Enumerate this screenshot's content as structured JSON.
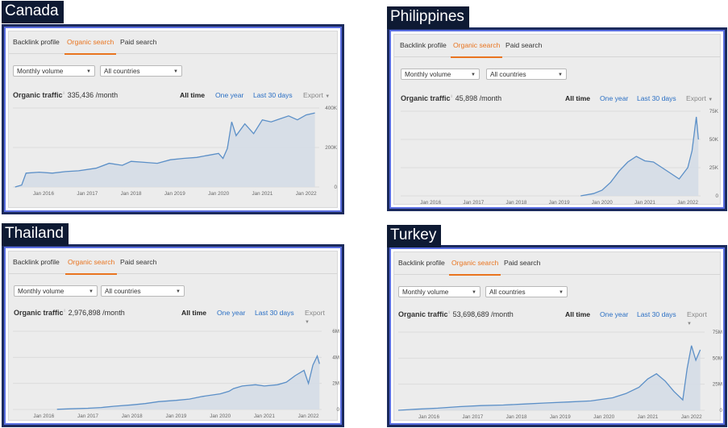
{
  "colors": {
    "accent": "#e9741f",
    "link": "#2a6fc4",
    "line": "#5b8fc7",
    "fill": "#d3dce6",
    "frame": "#1b2a5c",
    "label_bg": "#0e1a33"
  },
  "panels": [
    {
      "country": "Canada",
      "tabs": [
        "Backlink profile",
        "Organic search",
        "Paid search"
      ],
      "active_tab": "Organic search",
      "volume_select": "Monthly volume",
      "country_select": "All countries",
      "metric_label": "Organic traffic",
      "metric_value": "335,436 /month",
      "ranges": [
        "All time",
        "One year",
        "Last 30 days",
        "Export"
      ]
    },
    {
      "country": "Philippines",
      "tabs": [
        "Backlink profile",
        "Organic search",
        "Paid search"
      ],
      "active_tab": "Organic search",
      "volume_select": "Monthly volume",
      "country_select": "All countries",
      "metric_label": "Organic traffic",
      "metric_value": "45,898 /month",
      "ranges": [
        "All time",
        "One year",
        "Last 30 days",
        "Export"
      ]
    },
    {
      "country": "Thailand",
      "tabs": [
        "Backlink profile",
        "Organic search",
        "Paid search"
      ],
      "active_tab": "Organic search",
      "volume_select": "Monthly volume",
      "country_select": "All countries",
      "metric_label": "Organic traffic",
      "metric_value": "2,976,898 /month",
      "ranges": [
        "All time",
        "One year",
        "Last 30 days",
        "Export"
      ]
    },
    {
      "country": "Turkey",
      "tabs": [
        "Backlink profile",
        "Organic search",
        "Paid search"
      ],
      "active_tab": "Organic search",
      "volume_select": "Monthly volume",
      "country_select": "All countries",
      "metric_label": "Organic traffic",
      "metric_value": "53,698,689 /month",
      "ranges": [
        "All time",
        "One year",
        "Last 30 days",
        "Export"
      ]
    }
  ],
  "chart_data": [
    {
      "type": "area",
      "x_ticks": [
        "Jan 2016",
        "Jan 2017",
        "Jan 2018",
        "Jan 2019",
        "Jan 2020",
        "Jan 2021",
        "Jan 2022"
      ],
      "y_ticks": [
        "400K",
        "200K",
        "0"
      ],
      "ylim": [
        0,
        400000
      ],
      "x": [
        2015.35,
        2015.5,
        2015.6,
        2015.9,
        2016.2,
        2016.5,
        2016.8,
        2017.2,
        2017.5,
        2017.8,
        2018.0,
        2018.3,
        2018.6,
        2018.9,
        2019.2,
        2019.5,
        2019.8,
        2020.0,
        2020.1,
        2020.2,
        2020.3,
        2020.4,
        2020.6,
        2020.8,
        2021.0,
        2021.2,
        2021.4,
        2021.6,
        2021.8,
        2022.0,
        2022.2
      ],
      "y": [
        0,
        10000,
        70000,
        75000,
        70000,
        78000,
        82000,
        95000,
        120000,
        110000,
        130000,
        125000,
        120000,
        138000,
        145000,
        150000,
        162000,
        170000,
        145000,
        195000,
        330000,
        260000,
        320000,
        270000,
        340000,
        330000,
        345000,
        360000,
        340000,
        365000,
        375000
      ]
    },
    {
      "type": "area",
      "x_ticks": [
        "Jan 2016",
        "Jan 2017",
        "Jan 2018",
        "Jan 2019",
        "Jan 2020",
        "Jan 2021",
        "Jan 2022"
      ],
      "y_ticks": [
        "75K",
        "50K",
        "25K",
        "0"
      ],
      "ylim": [
        0,
        75000
      ],
      "x": [
        2019.5,
        2019.8,
        2020.0,
        2020.2,
        2020.4,
        2020.6,
        2020.8,
        2021.0,
        2021.2,
        2021.4,
        2021.6,
        2021.8,
        2022.0,
        2022.1,
        2022.2,
        2022.25
      ],
      "y": [
        0,
        2000,
        5000,
        12000,
        22000,
        30000,
        35000,
        31000,
        30000,
        25000,
        20000,
        15000,
        25000,
        40000,
        70000,
        50000
      ]
    },
    {
      "type": "area",
      "x_ticks": [
        "Jan 2016",
        "Jan 2017",
        "Jan 2018",
        "Jan 2019",
        "Jan 2020",
        "Jan 2021",
        "Jan 2022"
      ],
      "y_ticks": [
        "6M",
        "4M",
        "2M",
        "0"
      ],
      "ylim": [
        0,
        6000000
      ],
      "x": [
        2016.3,
        2016.6,
        2017.0,
        2017.3,
        2017.6,
        2018.0,
        2018.3,
        2018.6,
        2019.0,
        2019.3,
        2019.6,
        2020.0,
        2020.2,
        2020.3,
        2020.5,
        2020.8,
        2021.0,
        2021.3,
        2021.5,
        2021.7,
        2021.9,
        2022.0,
        2022.1,
        2022.2,
        2022.25
      ],
      "y": [
        10000,
        50000,
        90000,
        150000,
        250000,
        350000,
        450000,
        600000,
        700000,
        800000,
        1000000,
        1200000,
        1400000,
        1600000,
        1800000,
        1900000,
        1800000,
        1900000,
        2100000,
        2600000,
        3000000,
        2000000,
        3400000,
        4100000,
        3500000
      ]
    },
    {
      "type": "area",
      "x_ticks": [
        "Jan 2016",
        "Jan 2017",
        "Jan 2018",
        "Jan 2019",
        "Jan 2020",
        "Jan 2021",
        "Jan 2022"
      ],
      "y_ticks": [
        "75M",
        "50M",
        "25M",
        "0"
      ],
      "ylim": [
        0,
        75000000
      ],
      "x": [
        2015.3,
        2015.7,
        2016.2,
        2016.7,
        2017.2,
        2017.7,
        2018.2,
        2018.7,
        2019.2,
        2019.7,
        2020.2,
        2020.5,
        2020.8,
        2021.0,
        2021.2,
        2021.4,
        2021.6,
        2021.8,
        2021.9,
        2022.0,
        2022.1,
        2022.2
      ],
      "y": [
        0,
        1000000,
        2000000,
        3500000,
        4500000,
        5000000,
        6000000,
        7000000,
        8000000,
        9000000,
        12000000,
        16000000,
        22000000,
        30000000,
        35000000,
        28000000,
        18000000,
        10000000,
        40000000,
        62000000,
        48000000,
        58000000
      ]
    }
  ]
}
